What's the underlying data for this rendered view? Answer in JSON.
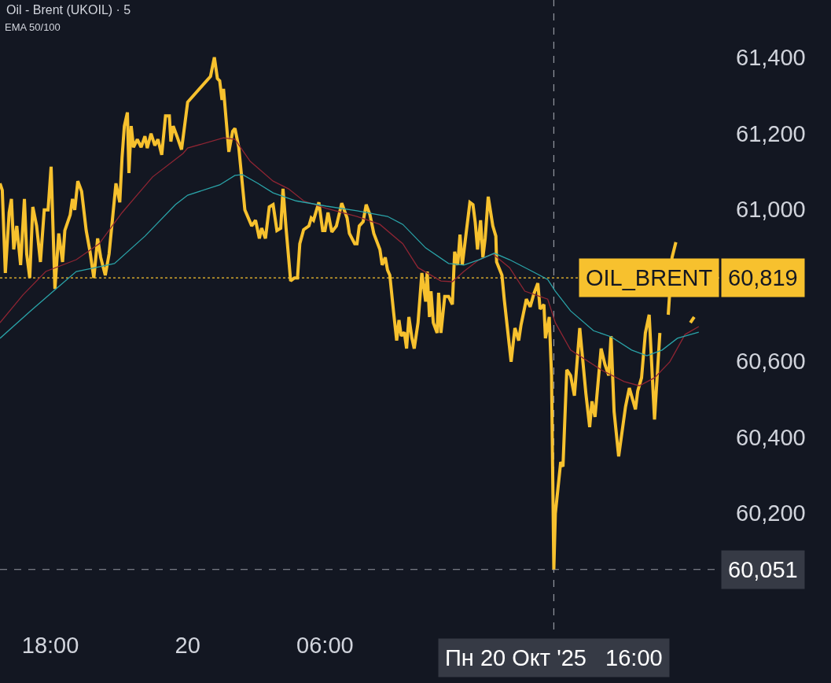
{
  "chart_data": {
    "type": "line",
    "title": "Oil - Brent (UKOIL) · 5",
    "subtitle": "EMA 50/100",
    "grid": false,
    "legend": "right",
    "marker": "none",
    "line_style": "solid",
    "xlim": [
      "2025-10-19T15:48",
      "2025-10-20T23:14"
    ],
    "xticks": [
      {
        "value": "2025-10-19T18:00",
        "label": "18:00"
      },
      {
        "value": "2025-10-20",
        "label": "20"
      },
      {
        "value": "2025-10-20T06:00",
        "label": "06:00"
      }
    ],
    "ylim": [
      59893,
      61551
    ],
    "yticks": [
      {
        "value": 60200,
        "label": "60,200"
      },
      {
        "value": 60400,
        "label": "60,400"
      },
      {
        "value": 60600,
        "label": "60,600"
      },
      {
        "value": 61000,
        "label": "61,000"
      },
      {
        "value": 61200,
        "label": "61,200"
      },
      {
        "value": 61400,
        "label": "61,400"
      }
    ],
    "series": [
      {
        "name": "OIL_BRENT",
        "color": "#f7c12e",
        "x": [
          "2025-10-19T15:48",
          "2025-10-19T15:54",
          "2025-10-19T16:02",
          "2025-10-19T16:12",
          "2025-10-19T16:18",
          "2025-10-19T16:24",
          "2025-10-19T16:32",
          "2025-10-19T16:42",
          "2025-10-19T16:52",
          "2025-10-19T16:58",
          "2025-10-19T17:06",
          "2025-10-19T17:14",
          "2025-10-19T17:24",
          "2025-10-19T17:34",
          "2025-10-19T17:44",
          "2025-10-19T17:54",
          "2025-10-19T18:02",
          "2025-10-19T18:12",
          "2025-10-19T18:22",
          "2025-10-19T18:32",
          "2025-10-19T18:38",
          "2025-10-19T18:52",
          "2025-10-19T18:58",
          "2025-10-19T19:04",
          "2025-10-19T19:12",
          "2025-10-19T19:22",
          "2025-10-19T19:34",
          "2025-10-19T19:44",
          "2025-10-19T19:54",
          "2025-10-19T20:04",
          "2025-10-19T20:12",
          "2025-10-19T20:24",
          "2025-10-19T20:34",
          "2025-10-19T20:52",
          "2025-10-19T21:02",
          "2025-10-19T21:08",
          "2025-10-19T21:14",
          "2025-10-19T21:22",
          "2025-10-19T21:26",
          "2025-10-19T21:32",
          "2025-10-19T21:38",
          "2025-10-19T21:48",
          "2025-10-19T21:58",
          "2025-10-19T22:08",
          "2025-10-19T22:14",
          "2025-10-19T22:24",
          "2025-10-19T22:34",
          "2025-10-19T22:42",
          "2025-10-19T22:52",
          "2025-10-19T23:02",
          "2025-10-19T23:12",
          "2025-10-19T23:16",
          "2025-10-19T23:22",
          "2025-10-19T23:32",
          "2025-10-19T23:44",
          "2025-10-20T00:00",
          "2025-10-20T01:00",
          "2025-10-20T01:10",
          "2025-10-20T01:18",
          "2025-10-20T01:24",
          "2025-10-20T01:30",
          "2025-10-20T01:34",
          "2025-10-20T01:48",
          "2025-10-20T01:58",
          "2025-10-20T02:04",
          "2025-10-20T02:14",
          "2025-10-20T02:30",
          "2025-10-20T02:48",
          "2025-10-20T02:58",
          "2025-10-20T03:08",
          "2025-10-20T03:14",
          "2025-10-20T03:24",
          "2025-10-20T03:34",
          "2025-10-20T03:44",
          "2025-10-20T03:54",
          "2025-10-20T04:04",
          "2025-10-20T04:10",
          "2025-10-20T04:18",
          "2025-10-20T04:30",
          "2025-10-20T04:40",
          "2025-10-20T04:48",
          "2025-10-20T04:54",
          "2025-10-20T05:04",
          "2025-10-20T05:18",
          "2025-10-20T05:24",
          "2025-10-20T05:30",
          "2025-10-20T05:44",
          "2025-10-20T05:54",
          "2025-10-20T06:00",
          "2025-10-20T06:08",
          "2025-10-20T06:18",
          "2025-10-20T06:30",
          "2025-10-20T06:44",
          "2025-10-20T06:58",
          "2025-10-20T07:04",
          "2025-10-20T07:18",
          "2025-10-20T07:24",
          "2025-10-20T07:30",
          "2025-10-20T07:40",
          "2025-10-20T07:48",
          "2025-10-20T07:58",
          "2025-10-20T08:08",
          "2025-10-20T08:24",
          "2025-10-20T08:30",
          "2025-10-20T08:38",
          "2025-10-20T08:44",
          "2025-10-20T08:50",
          "2025-10-20T09:00",
          "2025-10-20T09:08",
          "2025-10-20T09:14",
          "2025-10-20T09:20",
          "2025-10-20T09:28",
          "2025-10-20T09:34",
          "2025-10-20T09:40",
          "2025-10-20T09:48",
          "2025-10-20T09:54",
          "2025-10-20T10:04",
          "2025-10-20T10:14",
          "2025-10-20T10:24",
          "2025-10-20T10:28",
          "2025-10-20T10:34",
          "2025-10-20T10:38",
          "2025-10-20T10:44",
          "2025-10-20T10:54",
          "2025-10-20T10:58",
          "2025-10-20T11:04",
          "2025-10-20T11:14",
          "2025-10-20T11:24",
          "2025-10-20T11:34",
          "2025-10-20T11:40",
          "2025-10-20T11:48",
          "2025-10-20T11:54",
          "2025-10-20T12:00",
          "2025-10-20T12:10",
          "2025-10-20T12:20",
          "2025-10-20T12:28",
          "2025-10-20T12:34",
          "2025-10-20T12:40",
          "2025-10-20T12:48",
          "2025-10-20T12:54",
          "2025-10-20T13:00",
          "2025-10-20T13:08",
          "2025-10-20T13:20",
          "2025-10-20T13:28",
          "2025-10-20T13:30",
          "2025-10-20T13:44",
          "2025-10-20T13:50",
          "2025-10-20T14:08",
          "2025-10-20T14:18",
          "2025-10-20T14:28",
          "2025-10-20T14:34",
          "2025-10-20T14:48",
          "2025-10-20T14:58",
          "2025-10-20T15:08",
          "2025-10-20T15:18",
          "2025-10-20T15:24",
          "2025-10-20T15:34",
          "2025-10-20T15:38",
          "2025-10-20T15:48",
          "2025-10-20T15:54",
          "2025-10-20T16:00",
          "2025-10-20T16:04",
          "2025-10-20T16:18",
          "2025-10-20T16:24",
          "2025-10-20T16:34",
          "2025-10-20T16:44",
          "2025-10-20T16:54",
          "2025-10-20T17:08",
          "2025-10-20T17:24",
          "2025-10-20T17:34",
          "2025-10-20T17:40",
          "2025-10-20T17:48",
          "2025-10-20T18:04",
          "2025-10-20T18:14",
          "2025-10-20T18:24",
          "2025-10-20T18:30",
          "2025-10-20T18:38",
          "2025-10-20T18:50",
          "2025-10-20T19:08",
          "2025-10-20T19:18",
          "2025-10-20T19:28",
          "2025-10-20T19:34",
          "2025-10-20T19:40",
          "2025-10-20T19:50",
          "2025-10-20T20:00",
          "2025-10-20T20:10",
          "2025-10-20T20:24",
          "2025-10-20T20:38",
          "2025-10-20T20:44",
          "2025-10-20T21:00",
          "2025-10-20T21:10",
          "2025-10-20T21:20",
          "2025-10-20T21:38",
          "2025-10-20T21:58",
          "2025-10-20T22:08"
        ],
        "values": [
          61068,
          61050,
          60832,
          60991,
          61027,
          60894,
          60956,
          60853,
          61027,
          60882,
          60819,
          61006,
          60956,
          60861,
          60998,
          60998,
          61112,
          60790,
          60936,
          60861,
          60944,
          60985,
          61027,
          60998,
          61074,
          61047,
          60944,
          60888,
          60819,
          60923,
          60873,
          60826,
          60882,
          61068,
          61018,
          61136,
          61219,
          61255,
          61095,
          61219,
          61163,
          61184,
          61163,
          61192,
          61161,
          61199,
          61168,
          61184,
          61143,
          61246,
          61246,
          61178,
          61219,
          61192,
          61157,
          61282,
          61350,
          61400,
          61344,
          61338,
          61288,
          61317,
          61151,
          61205,
          61213,
          61163,
          60998,
          60956,
          60971,
          60923,
          60950,
          60923,
          61006,
          61012,
          60944,
          60950,
          61054,
          60950,
          60811,
          60819,
          60819,
          60909,
          60946,
          60956,
          60977,
          60971,
          61018,
          60944,
          60944,
          60991,
          60940,
          60956,
          61016,
          60977,
          60936,
          60909,
          60909,
          60956,
          60967,
          61012,
          60985,
          60936,
          60894,
          60853,
          60873,
          60840,
          60826,
          60728,
          60654,
          60708,
          60666,
          60676,
          60633,
          60716,
          60660,
          60633,
          60701,
          60832,
          60757,
          60836,
          60716,
          60784,
          60701,
          60674,
          60780,
          60674,
          60770,
          60770,
          60749,
          60888,
          60853,
          60933,
          60853,
          60936,
          61018,
          61012,
          60965,
          60894,
          60971,
          60873,
          60923,
          61033,
          60956,
          60929,
          60861,
          60826,
          60763,
          60598,
          60687,
          60654,
          60695,
          60763,
          60743,
          60778,
          60805,
          60737,
          60749,
          60660,
          60716,
          60562,
          60051,
          60198,
          60334,
          60322,
          60577,
          60562,
          60509,
          60687,
          60515,
          60426,
          60494,
          60453,
          60633,
          60591,
          60562,
          60666,
          60467,
          60349,
          60480,
          60529,
          60494,
          60473,
          60521,
          60556,
          60674,
          60722,
          60446,
          60674,
          null,
          60722,
          60873,
          60913,
          null,
          60701,
          60716
        ]
      },
      {
        "color": "#8e2533",
        "x": [
          "2025-10-19T15:48",
          "2025-10-19T16:48",
          "2025-10-19T17:48",
          "2025-10-19T19:08",
          "2025-10-19T20:08",
          "2025-10-19T21:08",
          "2025-10-19T22:28",
          "2025-10-19T23:48",
          "2025-10-20T00:00",
          "2025-10-20T01:34",
          "2025-10-20T02:04",
          "2025-10-20T02:44",
          "2025-10-20T03:44",
          "2025-10-20T04:24",
          "2025-10-20T05:04",
          "2025-10-20T06:04",
          "2025-10-20T07:24",
          "2025-10-20T08:24",
          "2025-10-20T09:24",
          "2025-10-20T10:04",
          "2025-10-20T11:04",
          "2025-10-20T11:34",
          "2025-10-20T12:04",
          "2025-10-20T12:44",
          "2025-10-20T13:20",
          "2025-10-20T14:04",
          "2025-10-20T14:44",
          "2025-10-20T15:44",
          "2025-10-20T16:04",
          "2025-10-20T16:44",
          "2025-10-20T18:04",
          "2025-10-20T19:04",
          "2025-10-20T19:44",
          "2025-10-20T20:24",
          "2025-10-20T21:04",
          "2025-10-20T21:44",
          "2025-10-20T22:20"
        ],
        "values": [
          60701,
          60774,
          60836,
          60867,
          60909,
          60991,
          61085,
          61147,
          61161,
          61188,
          61184,
          61126,
          61074,
          61054,
          61022,
          61002,
          60981,
          60960,
          60909,
          60846,
          60811,
          60809,
          60836,
          60867,
          60882,
          60846,
          60784,
          60763,
          60701,
          60629,
          60577,
          60546,
          60535,
          60556,
          60598,
          60670,
          60691
        ]
      },
      {
        "color": "#2aa3a8",
        "x": [
          "2025-10-19T15:48",
          "2025-10-19T17:08",
          "2025-10-19T18:08",
          "2025-10-19T19:08",
          "2025-10-19T19:58",
          "2025-10-19T20:48",
          "2025-10-19T22:08",
          "2025-10-19T23:28",
          "2025-10-20T00:00",
          "2025-10-20T01:24",
          "2025-10-20T02:04",
          "2025-10-20T02:24",
          "2025-10-20T03:04",
          "2025-10-20T03:44",
          "2025-10-20T04:44",
          "2025-10-20T06:04",
          "2025-10-20T07:24",
          "2025-10-20T08:44",
          "2025-10-20T09:24",
          "2025-10-20T10:24",
          "2025-10-20T11:24",
          "2025-10-20T12:04",
          "2025-10-20T12:44",
          "2025-10-20T13:24",
          "2025-10-20T14:04",
          "2025-10-20T15:04",
          "2025-10-20T15:44",
          "2025-10-20T16:04",
          "2025-10-20T16:44",
          "2025-10-20T17:44",
          "2025-10-20T18:30",
          "2025-10-20T19:24",
          "2025-10-20T20:04",
          "2025-10-20T20:44",
          "2025-10-20T21:24",
          "2025-10-20T22:20"
        ],
        "values": [
          60660,
          60732,
          60784,
          60836,
          60846,
          60857,
          60929,
          61012,
          61037,
          61064,
          61089,
          61091,
          61068,
          61043,
          61022,
          61008,
          60996,
          60981,
          60960,
          60898,
          60857,
          60853,
          60867,
          60884,
          60867,
          60836,
          60815,
          60784,
          60732,
          60680,
          60664,
          60629,
          60614,
          60629,
          60660,
          60676
        ]
      }
    ],
    "ref_lines": [
      {
        "axis": "y",
        "value": 60819,
        "label": "60,819",
        "color": "#f7c12e",
        "line_style": "dotted"
      },
      {
        "axis": "y",
        "value": 60051,
        "label": "60,051",
        "color": "#9598a1",
        "line_style": "dashed"
      },
      {
        "axis": "x",
        "value": "2025-10-20T16:00",
        "label": "Пн 20 Окт '25   16:00",
        "color": "#9598a1",
        "line_style": "dashed"
      }
    ]
  }
}
